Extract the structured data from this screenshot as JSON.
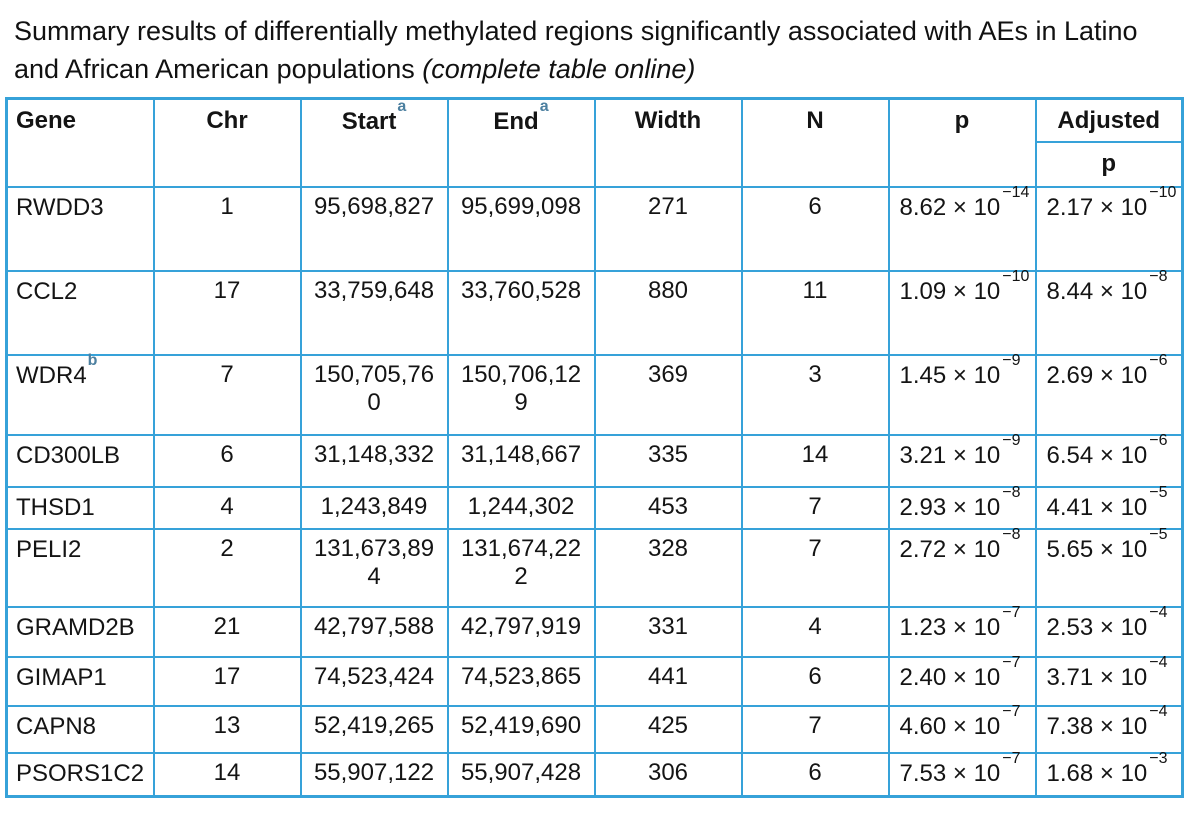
{
  "title": {
    "line1": "Summary results of differentially methylated regions significantly associated with AEs",
    "line2_prefix": "in Latino and African American populations ",
    "line2_italic": "(complete table online)"
  },
  "colors": {
    "border_blue": "#36a2d9",
    "superscript_blue": "#4d80a0",
    "text": "#141414"
  },
  "table": {
    "headers": {
      "gene": "Gene",
      "chr": "Chr",
      "start": "Start",
      "start_sup": "a",
      "end": "End",
      "end_sup": "a",
      "width": "Width",
      "n": "N",
      "p": "p",
      "adjusted": "Adjusted",
      "adjusted_sub": "p"
    },
    "rows": [
      {
        "gene": "RWDD3",
        "chr": "1",
        "start": "95,698,827",
        "end": "95,699,098",
        "width": "271",
        "n": "6",
        "p_m": "8.62 × 10",
        "p_e": "−14",
        "adj_m": "2.17 × 10",
        "adj_e": "−10"
      },
      {
        "gene": "CCL2",
        "chr": "17",
        "start": "33,759,648",
        "end": "33,760,528",
        "width": "880",
        "n": "11",
        "p_m": "1.09 × 10",
        "p_e": "−10",
        "adj_m": "8.44 × 10",
        "adj_e": "−8"
      },
      {
        "gene": "WDR4",
        "gene_sup": "b",
        "chr": "7",
        "start": "150,705,760",
        "end": "150,706,129",
        "width": "369",
        "n": "3",
        "p_m": "1.45 × 10",
        "p_e": "−9",
        "adj_m": "2.69 × 10",
        "adj_e": "−6"
      },
      {
        "gene": "CD300LB",
        "chr": "6",
        "start": "31,148,332",
        "end": "31,148,667",
        "width": "335",
        "n": "14",
        "p_m": "3.21 × 10",
        "p_e": "−9",
        "adj_m": "6.54 × 10",
        "adj_e": "−6"
      },
      {
        "gene": "THSD1",
        "chr": "4",
        "start": "1,243,849",
        "end": "1,244,302",
        "width": "453",
        "n": "7",
        "p_m": "2.93 × 10",
        "p_e": "−8",
        "adj_m": "4.41 × 10",
        "adj_e": "−5"
      },
      {
        "gene": "PELI2",
        "chr": "2",
        "start": "131,673,894",
        "end": "131,674,222",
        "width": "328",
        "n": "7",
        "p_m": "2.72 × 10",
        "p_e": "−8",
        "adj_m": "5.65 × 10",
        "adj_e": "−5"
      },
      {
        "gene": "GRAMD2B",
        "chr": "21",
        "start": "42,797,588",
        "end": "42,797,919",
        "width": "331",
        "n": "4",
        "p_m": "1.23 × 10",
        "p_e": "−7",
        "adj_m": "2.53 × 10",
        "adj_e": "−4"
      },
      {
        "gene": "GIMAP1",
        "chr": "17",
        "start": "74,523,424",
        "end": "74,523,865",
        "width": "441",
        "n": "6",
        "p_m": "2.40 × 10",
        "p_e": "−7",
        "adj_m": "3.71 × 10",
        "adj_e": "−4"
      },
      {
        "gene": "CAPN8",
        "chr": "13",
        "start": "52,419,265",
        "end": "52,419,690",
        "width": "425",
        "n": "7",
        "p_m": "4.60 × 10",
        "p_e": "−7",
        "adj_m": "7.38 × 10",
        "adj_e": "−4"
      },
      {
        "gene": "PSORS1C2",
        "chr": "14",
        "start": "55,907,122",
        "end": "55,907,428",
        "width": "306",
        "n": "6",
        "p_m": "7.53 × 10",
        "p_e": "−7",
        "adj_m": "1.68 × 10",
        "adj_e": "−3"
      }
    ]
  }
}
